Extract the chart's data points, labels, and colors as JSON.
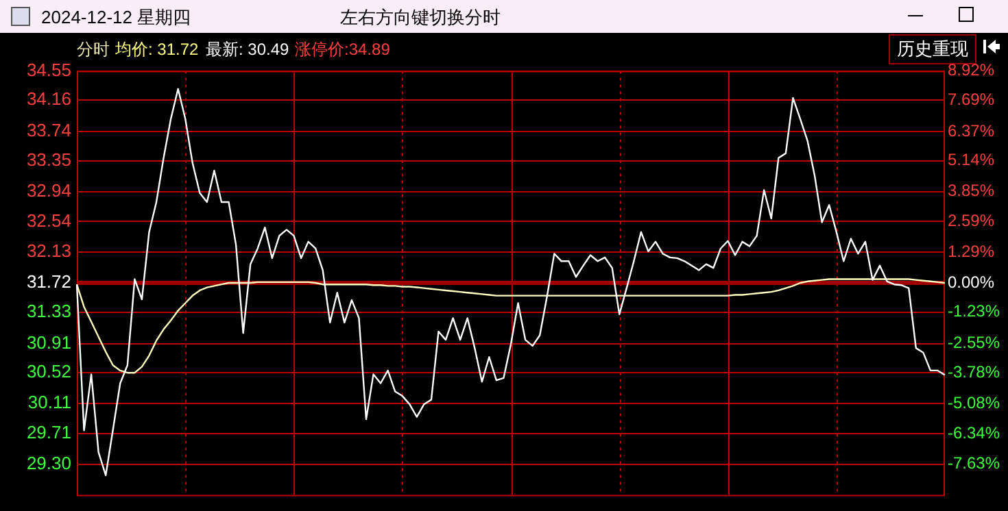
{
  "chart_data": {
    "type": "line",
    "title": "2024-12-12 星期四",
    "subtitle": "左右方向键切换分时",
    "annotations": [
      "分时",
      "均价: 31.72",
      "最新: 30.49",
      "涨停价:34.89",
      "历史重现"
    ],
    "categories": [
      null,
      null,
      null,
      null,
      null,
      null,
      null,
      null,
      null,
      null,
      null,
      null,
      null,
      null,
      null,
      null,
      null,
      null,
      null,
      null,
      null,
      null,
      null,
      null,
      null,
      null,
      null,
      null,
      null,
      null,
      null,
      null,
      null,
      null,
      null,
      null,
      null,
      null,
      null,
      null,
      null,
      null,
      null,
      null,
      null,
      null,
      null,
      null,
      null,
      null,
      null,
      null,
      null,
      null,
      null,
      null,
      null,
      null,
      null,
      null,
      null,
      null,
      null,
      null,
      null,
      null,
      null,
      null,
      null,
      null,
      null,
      null,
      null,
      null,
      null,
      null,
      null,
      null,
      null,
      null,
      null,
      null,
      null,
      null,
      null,
      null,
      null,
      null,
      null,
      null,
      null,
      null,
      null,
      null,
      null,
      null,
      null,
      null,
      null,
      null,
      null,
      null,
      null,
      null,
      null,
      null,
      null,
      null,
      null,
      null,
      null,
      null,
      null,
      null,
      null,
      null,
      null,
      null,
      null,
      null,
      null
    ],
    "series": [
      {
        "color": "#ffffff",
        "values": [
          31.7,
          29.75,
          30.5,
          29.46,
          29.15,
          29.76,
          30.38,
          30.62,
          31.77,
          31.5,
          32.4,
          32.8,
          33.39,
          33.91,
          34.31,
          33.91,
          33.32,
          32.92,
          32.8,
          33.22,
          32.8,
          32.8,
          32.23,
          31.05,
          31.97,
          32.18,
          32.46,
          32.05,
          32.35,
          32.43,
          32.35,
          32.05,
          32.27,
          32.18,
          31.89,
          31.19,
          31.59,
          31.19,
          31.49,
          31.25,
          29.9,
          30.5,
          30.38,
          30.55,
          30.27,
          30.21,
          30.1,
          29.93,
          30.1,
          30.16,
          31.07,
          30.96,
          31.25,
          30.96,
          31.25,
          30.85,
          30.4,
          30.73,
          30.42,
          30.45,
          30.9,
          31.45,
          30.96,
          30.88,
          31.02,
          31.54,
          32.11,
          32.01,
          32.01,
          31.8,
          31.95,
          32.09,
          32.01,
          32.06,
          31.92,
          31.3,
          31.65,
          32.01,
          32.4,
          32.14,
          32.27,
          32.11,
          32.06,
          32.05,
          32.01,
          31.95,
          31.89,
          31.97,
          31.92,
          32.18,
          32.28,
          32.09,
          32.27,
          32.21,
          32.35,
          32.96,
          32.58,
          33.39,
          33.45,
          34.19,
          33.91,
          33.62,
          33.15,
          32.53,
          32.76,
          32.4,
          32.01,
          32.31,
          32.11,
          32.27,
          31.76,
          31.95,
          31.74,
          31.7,
          31.69,
          31.65,
          30.85,
          30.79,
          30.55,
          30.55,
          30.49
        ]
      },
      {
        "color": "#ffffc0",
        "values": [
          31.7,
          31.4,
          31.2,
          31.0,
          30.8,
          30.62,
          30.55,
          30.52,
          30.52,
          30.6,
          30.75,
          30.95,
          31.1,
          31.22,
          31.35,
          31.45,
          31.55,
          31.62,
          31.66,
          31.68,
          31.7,
          31.72,
          31.72,
          31.72,
          31.72,
          31.73,
          31.73,
          31.73,
          31.73,
          31.73,
          31.73,
          31.73,
          31.73,
          31.72,
          31.7,
          31.7,
          31.7,
          31.7,
          31.7,
          31.7,
          31.7,
          31.69,
          31.69,
          31.68,
          31.68,
          31.67,
          31.67,
          31.66,
          31.65,
          31.64,
          31.63,
          31.62,
          31.61,
          31.6,
          31.59,
          31.58,
          31.57,
          31.56,
          31.55,
          31.55,
          31.55,
          31.55,
          31.55,
          31.55,
          31.55,
          31.55,
          31.55,
          31.55,
          31.55,
          31.55,
          31.55,
          31.55,
          31.55,
          31.55,
          31.55,
          31.55,
          31.55,
          31.55,
          31.55,
          31.55,
          31.55,
          31.55,
          31.55,
          31.55,
          31.55,
          31.55,
          31.55,
          31.55,
          31.55,
          31.55,
          31.55,
          31.56,
          31.56,
          31.57,
          31.58,
          31.59,
          31.6,
          31.62,
          31.65,
          31.68,
          31.72,
          31.74,
          31.75,
          31.76,
          31.77,
          31.77,
          31.77,
          31.77,
          31.77,
          31.77,
          31.77,
          31.77,
          31.77,
          31.77,
          31.77,
          31.77,
          31.76,
          31.75,
          31.74,
          31.73,
          31.72
        ]
      }
    ],
    "ylim": [
      28.89,
      34.55
    ],
    "yticks": [
      34.55,
      34.16,
      33.74,
      33.35,
      32.94,
      32.54,
      32.13,
      31.72,
      31.33,
      30.91,
      30.52,
      30.11,
      29.71,
      {
        "value": 29.3,
        "label": "29.30"
      }
    ],
    "y2lim": [
      -8.92,
      8.92
    ],
    "y2ticks": [
      {
        "value": 8.92,
        "label": "8.92%"
      },
      {
        "value": 7.69,
        "label": "7.69%"
      },
      {
        "value": 6.37,
        "label": "6.37%"
      },
      {
        "value": 5.14,
        "label": "5.14%"
      },
      {
        "value": 3.85,
        "label": "3.85%"
      },
      {
        "value": 2.59,
        "label": "2.59%"
      },
      {
        "value": 1.29,
        "label": "1.29%"
      },
      {
        "value": 0,
        "label": "0.00%"
      },
      {
        "value": -1.23,
        "label": "-1.23%"
      },
      {
        "value": -2.55,
        "label": "-2.55%"
      },
      {
        "value": -3.78,
        "label": "-3.78%"
      },
      {
        "value": -5.08,
        "label": "-5.08%"
      },
      {
        "value": -6.34,
        "label": "-6.34%"
      },
      {
        "value": -7.63,
        "label": "-7.63%"
      }
    ],
    "ref_lines": [
      {
        "axis": "y",
        "value": 31.72,
        "color": "#a00000"
      }
    ],
    "grid": true,
    "legend": false,
    "marker": "none"
  }
}
